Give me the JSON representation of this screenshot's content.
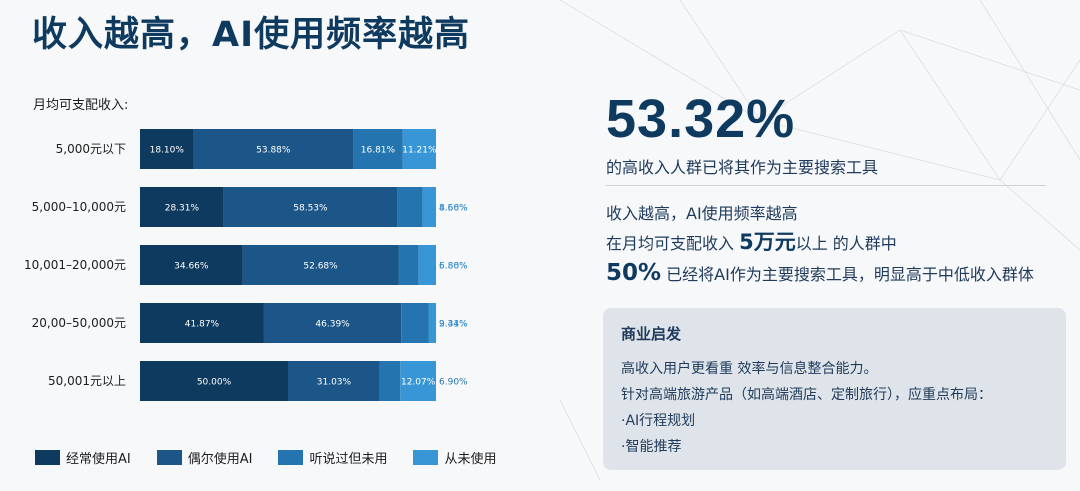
{
  "title": "收入越高，AI使用频率越高",
  "chart_data": {
    "type": "bar",
    "orientation": "horizontal",
    "stacked": true,
    "title": "月均可支配收入:",
    "unit": "%",
    "categories": [
      "5,000元以下",
      "5,000–10,000元",
      "10,001–20,000元",
      "20,00–50,000元",
      "50,001元以上"
    ],
    "series": [
      {
        "name": "经常使用AI",
        "color": "#0f3a5f",
        "values": [
          18.1,
          28.31,
          34.66,
          41.87,
          50.0
        ],
        "labels": [
          "18.10%",
          "28.31%",
          "34.66%",
          "41.87%",
          "50.00%"
        ]
      },
      {
        "name": "偶尔使用AI",
        "color": "#1c5689",
        "values": [
          53.88,
          58.53,
          52.68,
          46.39,
          31.03
        ],
        "labels": [
          "53.88%",
          "58.53%",
          "52.68%",
          "46.39%",
          "31.03%"
        ]
      },
      {
        "name": "听说过但未用",
        "color": "#2474b0",
        "values": [
          16.81,
          8.66,
          6.8,
          9.34,
          6.9
        ],
        "labels": [
          "16.81%",
          "8.66%",
          "6.80%",
          "9.34%",
          "6.90%"
        ]
      },
      {
        "name": "从未使用",
        "color": "#3996d6",
        "values": [
          11.21,
          4.5,
          5.86,
          2.41,
          12.07
        ],
        "labels": [
          "11.21%",
          "4.50%",
          "5.86%",
          "2.41%",
          "12.07%"
        ]
      }
    ],
    "xlim": [
      0,
      100
    ],
    "legend_position": "bottom"
  },
  "highlight": {
    "percent": "53.32%",
    "subtitle": "的高收入人群已将其作为主要搜索工具"
  },
  "summary": {
    "line1": "收入越高，AI使用频率越高",
    "line2_prefix": "在月均可支配收入 ",
    "line2_em": "5万元",
    "line2_suffix": "以上 的人群中",
    "line3_em": "50%",
    "line3_suffix": " 已经将AI作为主要搜索工具，明显高于中低收入群体"
  },
  "insight": {
    "title": "商业启发",
    "lines": [
      "高收入用户更看重 效率与信息整合能力。",
      "针对高端旅游产品（如高端酒店、定制旅行），应重点布局：",
      "·AI行程规划",
      "·智能推荐"
    ]
  }
}
